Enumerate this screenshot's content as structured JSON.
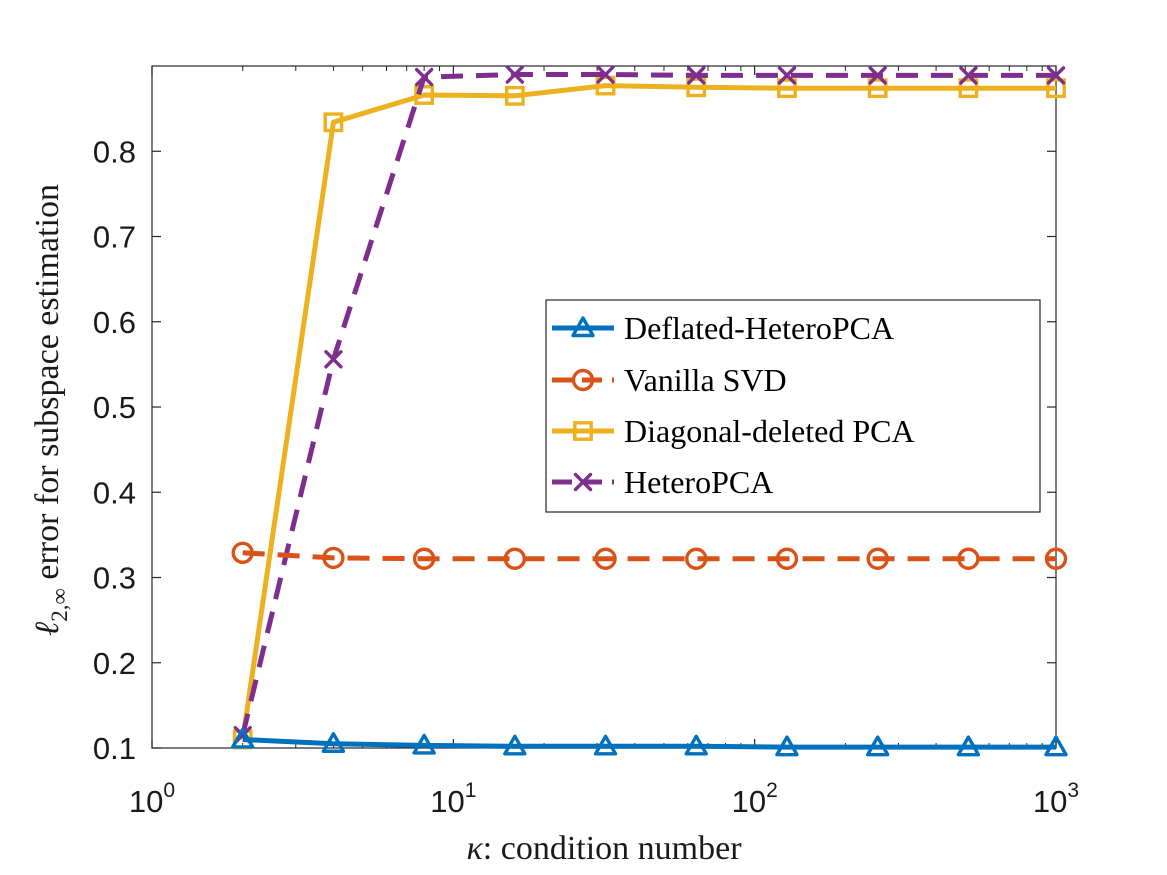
{
  "chart_data": {
    "type": "line",
    "title": "",
    "xlabel": "κ: condition number",
    "ylabel": "ℓ2,∞ error for subspace estimation",
    "ylabel_main": "ℓ",
    "ylabel_sub": "2,∞",
    "ylabel_rest": " error for subspace estimation",
    "xlabel_kappa": "κ",
    "xlabel_rest": ": condition number",
    "xscale": "log",
    "xlim": [
      1,
      1000
    ],
    "ylim": [
      0.1,
      0.9
    ],
    "x_ticks": [
      {
        "base": "10",
        "exp": "0"
      },
      {
        "base": "10",
        "exp": "1"
      },
      {
        "base": "10",
        "exp": "2"
      },
      {
        "base": "10",
        "exp": "3"
      }
    ],
    "y_ticks": [
      "0.1",
      "0.2",
      "0.3",
      "0.4",
      "0.5",
      "0.6",
      "0.7",
      "0.8"
    ],
    "y_tick_values": [
      0.1,
      0.2,
      0.3,
      0.4,
      0.5,
      0.6,
      0.7,
      0.8
    ],
    "legend_position": "center-right",
    "x": [
      2,
      4,
      8,
      16,
      32,
      64,
      128,
      256,
      512,
      1024
    ],
    "series": [
      {
        "name": "Deflated-HeteroPCA",
        "color": "#0072bd",
        "marker": "triangle",
        "dash": "solid",
        "values": [
          0.11,
          0.105,
          0.103,
          0.102,
          0.102,
          0.102,
          0.101,
          0.101,
          0.101,
          0.101
        ]
      },
      {
        "name": "Vanilla SVD",
        "color": "#d95319",
        "marker": "circle",
        "dash": "dashed",
        "values": [
          0.329,
          0.323,
          0.322,
          0.322,
          0.322,
          0.322,
          0.322,
          0.322,
          0.322,
          0.322
        ]
      },
      {
        "name": "Diagonal-deleted PCA",
        "color": "#edb120",
        "marker": "square",
        "dash": "solid",
        "values": [
          0.11,
          0.834,
          0.866,
          0.865,
          0.877,
          0.875,
          0.874,
          0.874,
          0.874,
          0.874
        ]
      },
      {
        "name": "HeteroPCA",
        "color": "#7e2f8e",
        "marker": "x",
        "dash": "dashed",
        "values": [
          0.115,
          0.556,
          0.887,
          0.89,
          0.89,
          0.889,
          0.889,
          0.889,
          0.889,
          0.889
        ]
      }
    ]
  }
}
